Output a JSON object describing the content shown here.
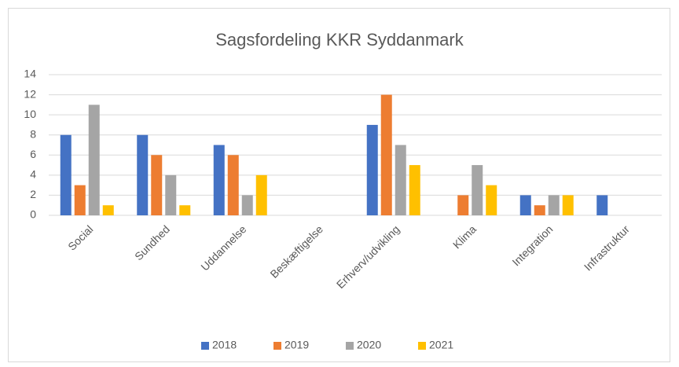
{
  "chart_data": {
    "type": "bar",
    "title": "Sagsfordeling KKR Syddanmark",
    "categories": [
      "Social",
      "Sundhed",
      "Uddannelse",
      "Beskæftigelse",
      "Erhverv/udvikling",
      "Klima",
      "Integration",
      "Infrastruktur"
    ],
    "series": [
      {
        "name": "2018",
        "color": "#4472c4",
        "values": [
          8,
          8,
          7,
          0,
          9,
          0,
          2,
          2
        ]
      },
      {
        "name": "2019",
        "color": "#ed7d31",
        "values": [
          3,
          6,
          6,
          0,
          12,
          2,
          1,
          0
        ]
      },
      {
        "name": "2020",
        "color": "#a5a5a5",
        "values": [
          11,
          4,
          2,
          0,
          7,
          5,
          2,
          0
        ]
      },
      {
        "name": "2021",
        "color": "#ffc000",
        "values": [
          1,
          1,
          4,
          0,
          5,
          3,
          2,
          0
        ]
      }
    ],
    "ylim": [
      0,
      14
    ],
    "yticks": [
      0,
      2,
      4,
      6,
      8,
      10,
      12,
      14
    ],
    "grid": true,
    "legend": "bottom"
  }
}
